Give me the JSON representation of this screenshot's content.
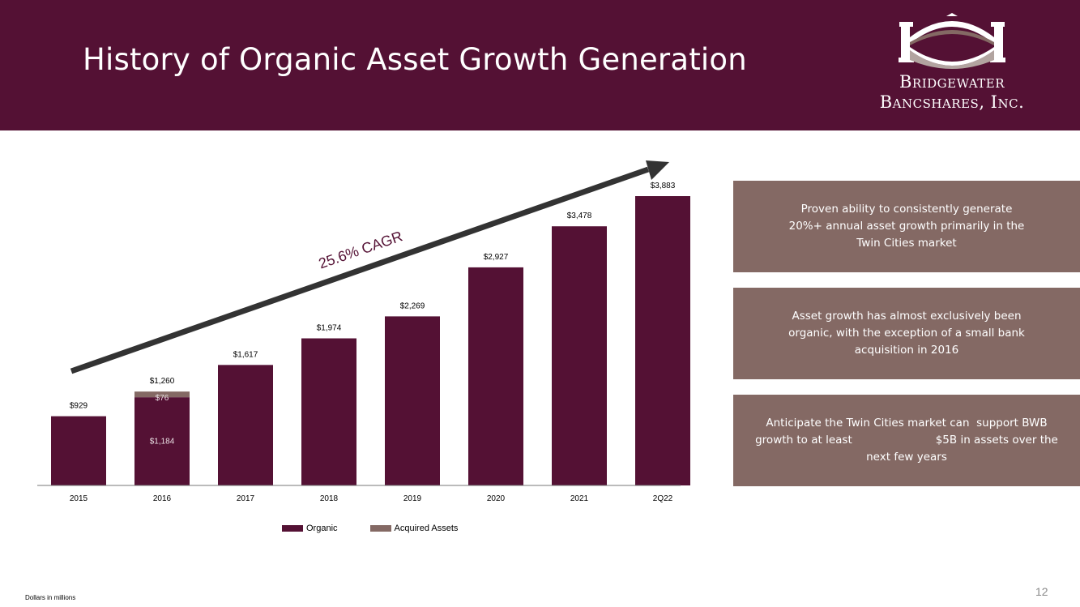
{
  "header": {
    "title": "History of Organic Asset Growth Generation",
    "logo_line1": "Bridgewater",
    "logo_line2": "Bancshares, Inc."
  },
  "colors": {
    "header_bg": "#541134",
    "organic": "#541134",
    "acquired": "#846964",
    "arrow": "#333333",
    "panel_bg": "#846964"
  },
  "chart_data": {
    "type": "bar",
    "stacked": true,
    "categories": [
      "2015",
      "2016",
      "2017",
      "2018",
      "2019",
      "2020",
      "2021",
      "2Q22"
    ],
    "series": [
      {
        "name": "Organic",
        "values": [
          929,
          1184,
          1617,
          1974,
          2269,
          2927,
          3478,
          3883
        ]
      },
      {
        "name": "Acquired Assets",
        "values": [
          0,
          76,
          0,
          0,
          0,
          0,
          0,
          0
        ]
      }
    ],
    "total_labels": [
      "$929",
      "$1,260",
      "$1,617",
      "$1,974",
      "$2,269",
      "$2,927",
      "$3,478",
      "$3,883"
    ],
    "segment_labels": {
      "organic_2016": "$1,184",
      "acquired_2016": "$76"
    },
    "legend": [
      "Organic",
      "Acquired Assets"
    ],
    "legend_position": "bottom",
    "annotation": "25.6% CAGR",
    "ylim": [
      0,
      3883
    ],
    "grid": false
  },
  "panels": [
    "Proven ability to consistently generate 20%+ annual asset growth primarily in the Twin Cities market",
    "Asset growth has almost exclusively been organic, with the exception of a small bank acquisition in 2016",
    "Anticipate the Twin Cities market can  support BWB growth to at least                        $5B in assets over the next few years"
  ],
  "footer": {
    "note": "Dollars in millions",
    "page_number": "12"
  }
}
